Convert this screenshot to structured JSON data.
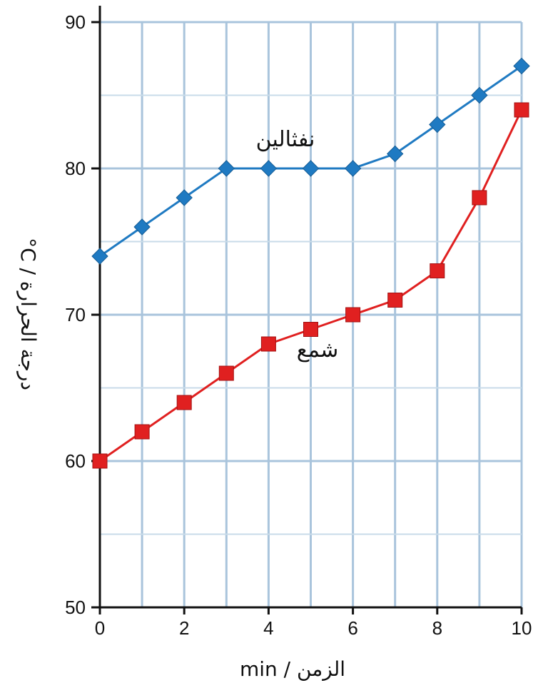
{
  "chart_data": {
    "type": "line",
    "xlabel": "الزمن / min",
    "ylabel": "درجة الحرارة / C°",
    "xlim": [
      0,
      10
    ],
    "ylim": [
      50,
      90
    ],
    "x_ticks": [
      0,
      2,
      4,
      6,
      8,
      10
    ],
    "y_ticks": [
      50,
      60,
      70,
      80,
      90
    ],
    "grid": true,
    "x": [
      0,
      1,
      2,
      3,
      4,
      5,
      6,
      7,
      8,
      9,
      10
    ],
    "series": [
      {
        "name": "نفثالين",
        "color": "#1f7ac2",
        "marker": "diamond",
        "values": [
          74,
          76,
          78,
          80,
          80,
          80,
          80,
          81,
          83,
          85,
          87
        ]
      },
      {
        "name": "شمع",
        "color": "#e02020",
        "marker": "square",
        "values": [
          60,
          62,
          64,
          66,
          68,
          69,
          70,
          71,
          73,
          78,
          84
        ]
      }
    ],
    "colors": {
      "grid_major": "#a9c4dc",
      "grid_minor": "#c9dbe9",
      "axis": "#111111"
    }
  }
}
